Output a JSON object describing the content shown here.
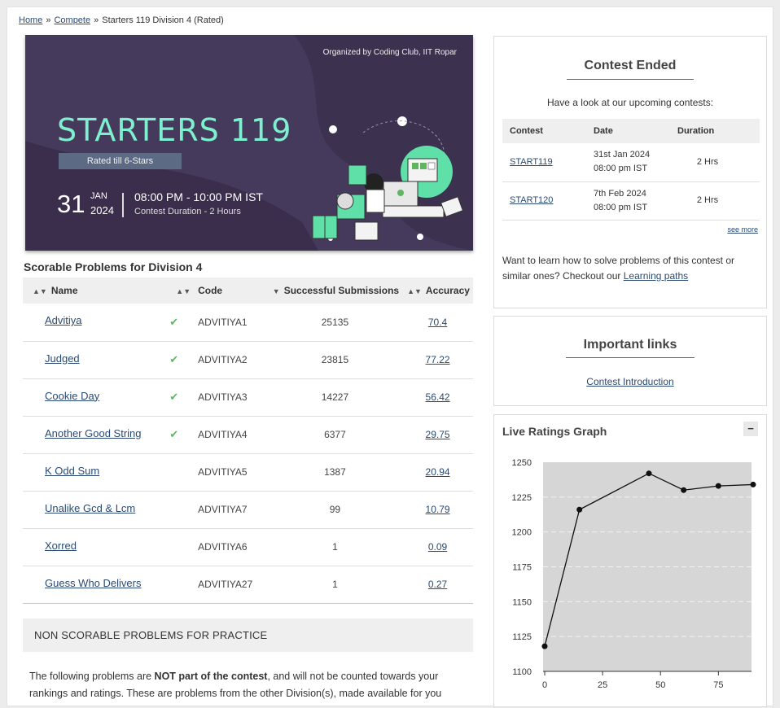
{
  "breadcrumb": {
    "home": "Home",
    "compete": "Compete",
    "sep": "»",
    "current": "Starters 119 Division 4 (Rated)"
  },
  "banner": {
    "organizer": "Organized by Coding Club, IIT Ropar",
    "title": "STARTERS 119",
    "rated": "Rated till 6-Stars",
    "day": "31",
    "month": "JAN",
    "year": "2024",
    "time": "08:00 PM - 10:00 PM IST",
    "duration": "Contest Duration - 2  Hours"
  },
  "problems": {
    "title": "Scorable Problems for Division 4",
    "headers": {
      "name": "Name",
      "code": "Code",
      "subs": "Successful Submissions",
      "accuracy": "Accuracy"
    },
    "rows": [
      {
        "name": "Advitiya",
        "solved": true,
        "code": "ADVITIYA1",
        "subs": "25135",
        "accuracy": "70.4"
      },
      {
        "name": "Judged",
        "solved": true,
        "code": "ADVITIYA2",
        "subs": "23815",
        "accuracy": "77.22"
      },
      {
        "name": "Cookie Day",
        "solved": true,
        "code": "ADVITIYA3",
        "subs": "14227",
        "accuracy": "56.42"
      },
      {
        "name": "Another Good String",
        "solved": true,
        "code": "ADVITIYA4",
        "subs": "6377",
        "accuracy": "29.75"
      },
      {
        "name": "K Odd Sum",
        "solved": false,
        "code": "ADVITIYA5",
        "subs": "1387",
        "accuracy": "20.94"
      },
      {
        "name": "Unalike Gcd & Lcm",
        "solved": false,
        "code": "ADVITIYA7",
        "subs": "99",
        "accuracy": "10.79"
      },
      {
        "name": "Xorred",
        "solved": false,
        "code": "ADVITIYA6",
        "subs": "1",
        "accuracy": "0.09"
      },
      {
        "name": "Guess Who Delivers",
        "solved": false,
        "code": "ADVITIYA27",
        "subs": "1",
        "accuracy": "0.27"
      }
    ]
  },
  "nonscorable": {
    "title": "NON SCORABLE PROBLEMS FOR PRACTICE",
    "text_before": "The following problems are ",
    "text_bold": "NOT part of the contest",
    "text_after": ", and will not be counted towards your rankings and ratings. These are problems from the other Division(s), made available for you"
  },
  "contest_ended": {
    "title": "Contest Ended",
    "lead": "Have a look at our upcoming contests:",
    "headers": {
      "contest": "Contest",
      "date": "Date",
      "duration": "Duration"
    },
    "rows": [
      {
        "contest": "START119",
        "date1": "31st Jan 2024",
        "date2": "08:00 pm IST",
        "duration": "2 Hrs"
      },
      {
        "contest": "START120",
        "date1": "7th Feb 2024",
        "date2": "08:00 pm IST",
        "duration": "2 Hrs"
      }
    ],
    "see_more": "see more",
    "learn_text": "Want to learn how to solve problems of this contest or similar ones? Checkout our ",
    "learn_link": "Learning paths"
  },
  "important_links": {
    "title": "Important links",
    "intro": "Contest Introduction"
  },
  "graph": {
    "title": "Live Ratings Graph",
    "collapse": "−"
  },
  "colors": {
    "link": "#2a4a72",
    "check": "#5fb562",
    "banner_bg": "#3c2f4f",
    "banner_title": "#7ff0cf"
  },
  "chart_data": {
    "type": "line",
    "title": "Live Ratings Graph",
    "x": [
      0,
      15,
      45,
      60,
      75,
      90
    ],
    "y": [
      1118,
      1216,
      1242,
      1230,
      1233,
      1234
    ],
    "x_ticks": [
      0,
      25,
      50,
      75
    ],
    "y_ticks": [
      1100,
      1125,
      1150,
      1175,
      1200,
      1225,
      1250
    ],
    "xlim": [
      0,
      90
    ],
    "ylim": [
      1100,
      1250
    ],
    "grid": true
  }
}
